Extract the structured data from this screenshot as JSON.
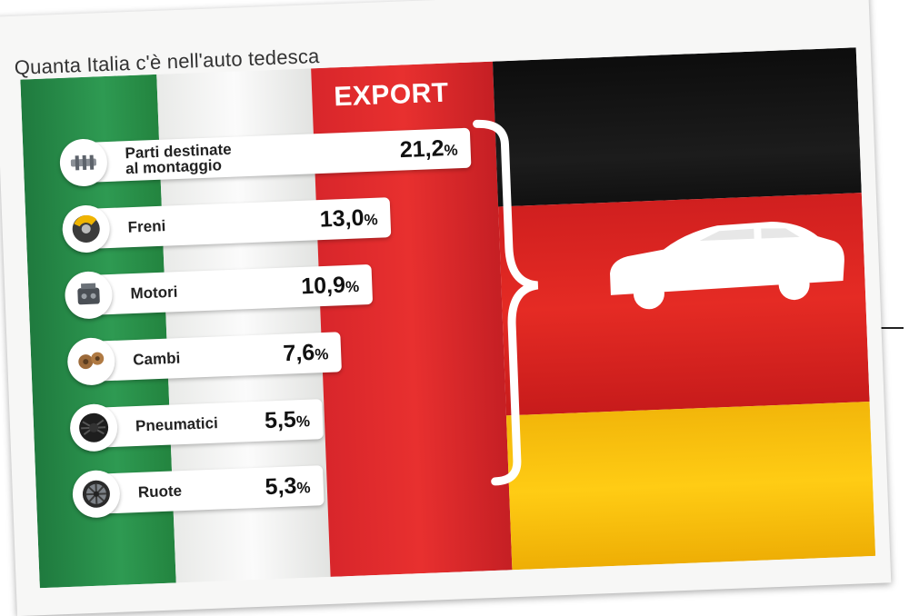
{
  "title": "Quanta Italia c'è nell'auto tedesca",
  "export_label": "EXPORT",
  "colors": {
    "italy_green": "#2e9a52",
    "italy_white": "#f5f5f3",
    "italy_red": "#e8302f",
    "germany_black": "#151515",
    "germany_red": "#e02a24",
    "germany_gold": "#ffc814"
  },
  "chart_data": {
    "type": "bar",
    "title": "Quanta Italia c'è nell'auto tedesca",
    "categories": [
      "Parti destinate\nal montaggio",
      "Freni",
      "Motori",
      "Cambi",
      "Pneumatici",
      "Ruote"
    ],
    "series": [
      {
        "values": [
          21.2,
          13.0,
          10.9,
          7.6,
          5.5,
          5.3
        ]
      }
    ],
    "value_labels": [
      {
        "num": "21,2",
        "unit": "%"
      },
      {
        "num": "13,0",
        "unit": "%"
      },
      {
        "num": "10,9",
        "unit": "%"
      },
      {
        "num": "7,6",
        "unit": "%"
      },
      {
        "num": "5,5",
        "unit": "%"
      },
      {
        "num": "5,3",
        "unit": "%"
      }
    ],
    "icons": [
      "parts-icon",
      "brake-icon",
      "engine-icon",
      "gearbox-icon",
      "tire-icon",
      "wheel-icon"
    ],
    "xlim": [
      0,
      21.2
    ]
  }
}
